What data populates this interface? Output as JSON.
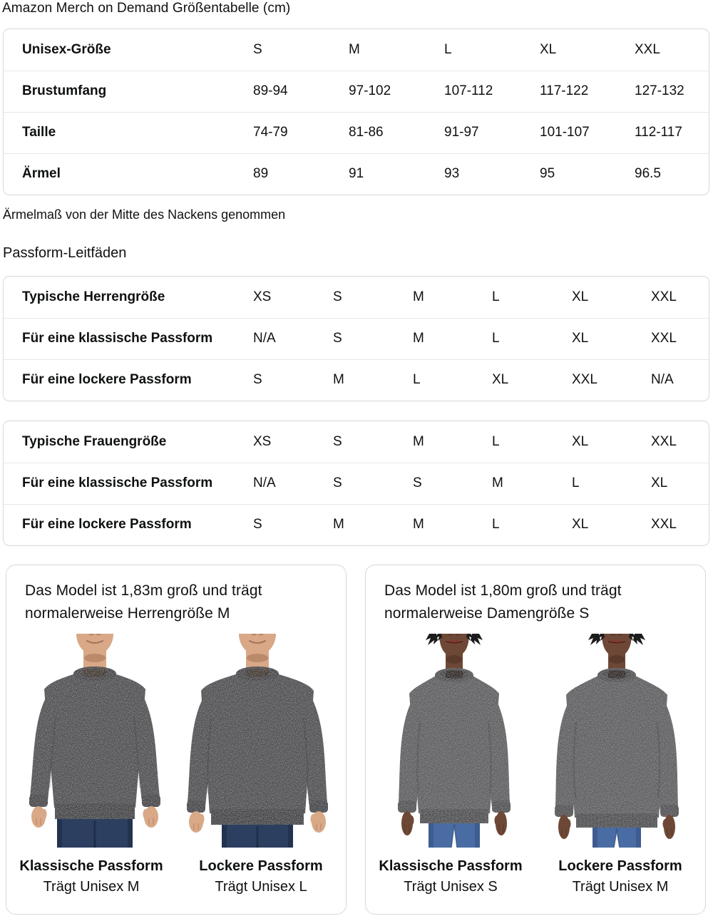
{
  "page_title": "Amazon Merch on Demand Größentabelle (cm)",
  "size_table": {
    "header_label": "Unisex-Größe",
    "header_sizes": [
      "S",
      "M",
      "L",
      "XL",
      "XXL"
    ],
    "rows": [
      {
        "label": "Brustumfang",
        "values": [
          "89-94",
          "97-102",
          "107-112",
          "117-122",
          "127-132"
        ]
      },
      {
        "label": "Taille",
        "values": [
          "74-79",
          "81-86",
          "91-97",
          "101-107",
          "112-117"
        ]
      },
      {
        "label": "Ärmel",
        "values": [
          "89",
          "91",
          "93",
          "95",
          "96.5"
        ]
      }
    ]
  },
  "note": "Ärmelmaß von der Mitte des Nackens genommen",
  "fit_guides_heading": "Passform-Leitfäden",
  "fit_tables": [
    {
      "rows": [
        {
          "label": "Typische Herrengröße",
          "values": [
            "XS",
            "S",
            "M",
            "L",
            "XL",
            "XXL"
          ]
        },
        {
          "label": "Für eine klassische Passform",
          "values": [
            "N/A",
            "S",
            "M",
            "L",
            "XL",
            "XXL"
          ]
        },
        {
          "label": "Für eine lockere Passform",
          "values": [
            "S",
            "M",
            "L",
            "XL",
            "XXL",
            "N/A"
          ]
        }
      ]
    },
    {
      "rows": [
        {
          "label": "Typische Frauengröße",
          "values": [
            "XS",
            "S",
            "M",
            "L",
            "XL",
            "XXL"
          ]
        },
        {
          "label": "Für eine klassische Passform",
          "values": [
            "N/A",
            "S",
            "S",
            "M",
            "L",
            "XL"
          ]
        },
        {
          "label": "Für eine lockere Passform",
          "values": [
            "S",
            "M",
            "M",
            "L",
            "XL",
            "XXL"
          ]
        }
      ]
    }
  ],
  "model_cards": [
    {
      "description": "Das Model ist 1,83m groß und trägt normalerweise Herrengröße M",
      "photos": [
        {
          "image_name": "male-model-classic-fit-photo",
          "fit_label": "Klassische Passform",
          "size_label": "Trägt Unisex M"
        },
        {
          "image_name": "male-model-loose-fit-photo",
          "fit_label": "Lockere Passform",
          "size_label": "Trägt Unisex L"
        }
      ]
    },
    {
      "description": "Das Model ist 1,80m groß und trägt normalerweise Damengröße S",
      "photos": [
        {
          "image_name": "female-model-classic-fit-photo",
          "fit_label": "Klassische Passform",
          "size_label": "Trägt Unisex S"
        },
        {
          "image_name": "female-model-loose-fit-photo",
          "fit_label": "Lockere Passform",
          "size_label": "Trägt Unisex M"
        }
      ]
    }
  ],
  "colors": {
    "text": "#0F1111",
    "card_border": "#D5D9D9",
    "row_divider": "#E7E7E7",
    "sweatshirt_dark_heather": "#4E4E51",
    "sweatshirt_heather_female": "#5D5D60",
    "jeans_dark_indigo": "#2C3F61",
    "jeans_medium_blue": "#4A6CA4",
    "skin_light": "#D8A887",
    "skin_dark": "#6E4836"
  }
}
